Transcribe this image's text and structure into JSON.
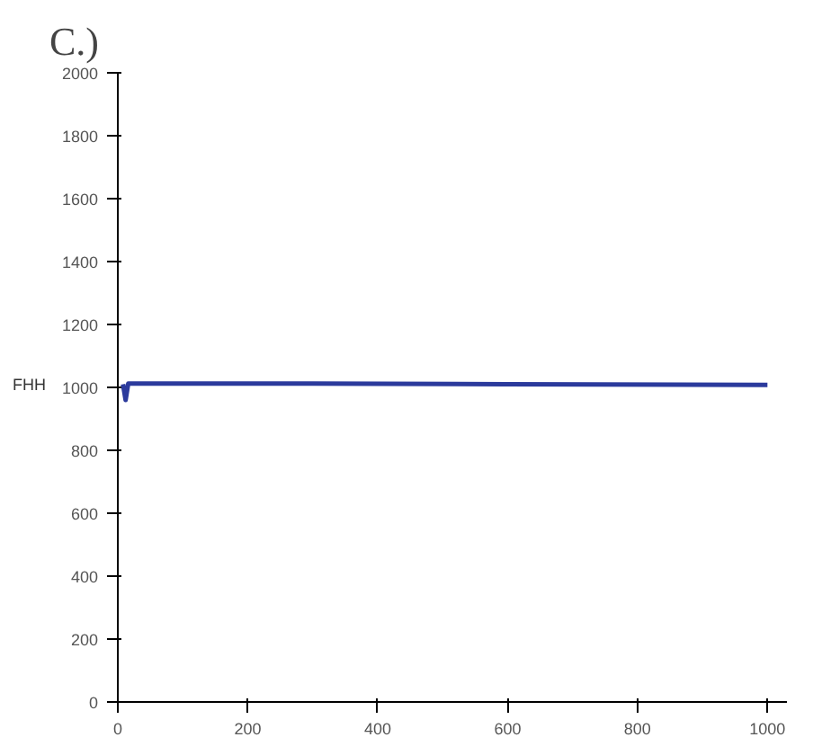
{
  "chart_data": {
    "type": "line",
    "title": "C.)",
    "series": [
      {
        "name": "FHH",
        "color": "#2b3a9c",
        "x": [
          8,
          12,
          16,
          300,
          600,
          1000
        ],
        "values": [
          1010,
          960,
          1012,
          1012,
          1010,
          1008
        ]
      }
    ],
    "xlim": [
      0,
      1030
    ],
    "ylim": [
      0,
      2000
    ],
    "xticks": [
      0,
      200,
      400,
      600,
      800,
      1000
    ],
    "yticks": [
      0,
      200,
      400,
      600,
      800,
      1000,
      1200,
      1400,
      1600,
      1800,
      2000
    ],
    "grid": false,
    "marker": "none",
    "line_style": "solid"
  }
}
